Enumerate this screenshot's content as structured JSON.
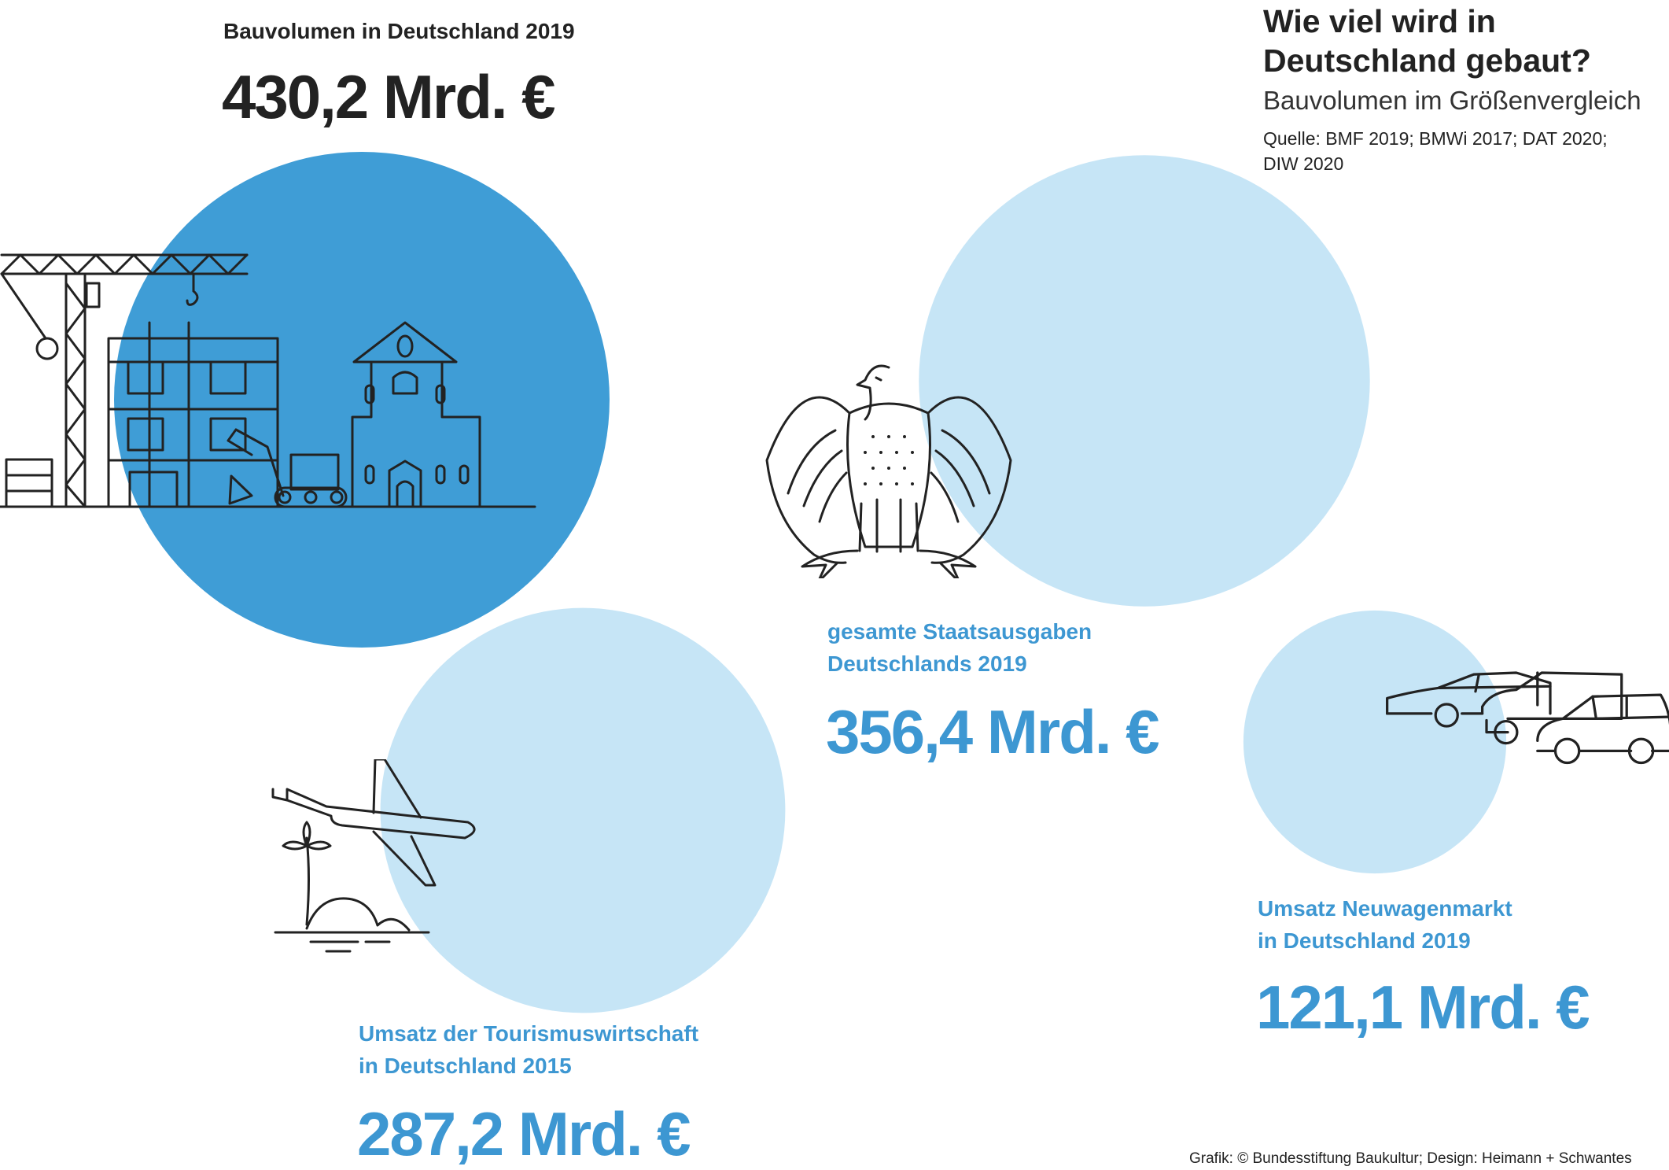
{
  "title_line1": "Wie viel wird in",
  "title_line2": "Deutschland gebaut?",
  "subtitle": "Bauvolumen im Größenvergleich",
  "source": "Quelle: BMF 2019; BMWi 2017; DAT 2020; DIW 2020",
  "credit": "Grafik: © Bundesstiftung Baukultur; Design: Heimann + Schwantes",
  "colors": {
    "dark_circle": "#3f9dd6",
    "light_circle": "#c6e5f6",
    "accent_text": "#3d97d2",
    "dark_text": "#222222"
  },
  "chart_data": {
    "type": "bubble",
    "unit": "Mrd. €",
    "items": [
      {
        "id": "bau",
        "label_lines": [
          "Bauvolumen in Deutschland 2019"
        ],
        "value": 430.2,
        "value_label": "430,2 Mrd. €",
        "icon": "construction-site-icon",
        "highlight": true
      },
      {
        "id": "staat",
        "label_lines": [
          "gesamte Staatsausgaben",
          "Deutschlands 2019"
        ],
        "value": 356.4,
        "value_label": "356,4 Mrd. €",
        "icon": "federal-eagle-icon",
        "highlight": false
      },
      {
        "id": "tourismus",
        "label_lines": [
          "Umsatz der Tourismuswirtschaft",
          "in Deutschland 2015"
        ],
        "value": 287.2,
        "value_label": "287,2 Mrd. €",
        "icon": "airplane-island-icon",
        "highlight": false
      },
      {
        "id": "auto",
        "label_lines": [
          "Umsatz Neuwagenmarkt",
          "in Deutschland 2019"
        ],
        "value": 121.1,
        "value_label": "121,1 Mrd. €",
        "icon": "cars-icon",
        "highlight": false
      }
    ]
  }
}
